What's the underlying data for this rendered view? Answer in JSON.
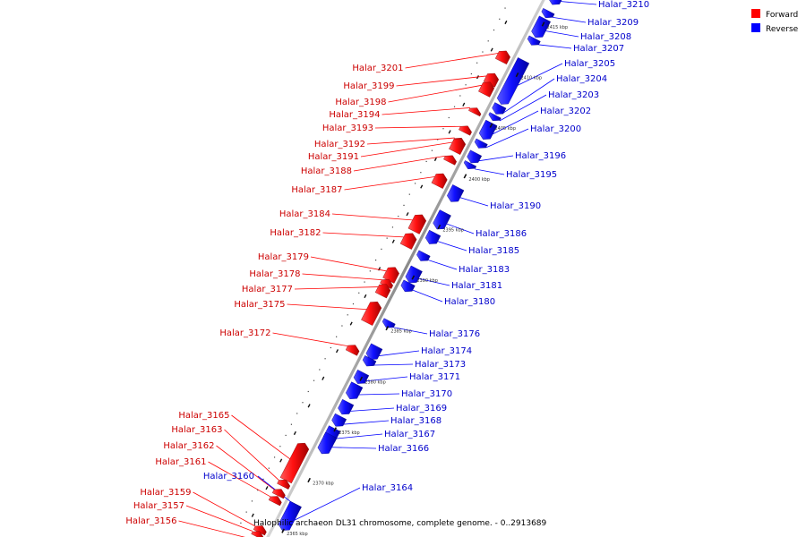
{
  "legend": {
    "items": [
      {
        "label": "Forward",
        "color": "#ff0000"
      },
      {
        "label": "Reverse",
        "color": "#0000ff"
      }
    ]
  },
  "caption": "Halophilic archaeon DL31 chromosome, complete genome. - 0..2913689",
  "kbp_ticks": [
    "2415 kbp",
    "2410 kbp",
    "2405 kbp",
    "2400 kbp",
    "2395 kbp",
    "2390 kbp",
    "2385 kbp",
    "2380 kbp",
    "2375 kbp",
    "2370 kbp",
    "2365 kbp"
  ],
  "genes": {
    "forward": [
      {
        "label": "Halar_3201",
        "s": 0.87,
        "len": 0.019
      },
      {
        "label": "Halar_3199",
        "s": 0.828,
        "len": 0.02
      },
      {
        "label": "Halar_3198",
        "s": 0.81,
        "len": 0.022
      },
      {
        "label": "Halar_3194",
        "s": 0.775,
        "len": 0.01
      },
      {
        "label": "Halar_3193",
        "s": 0.74,
        "len": 0.012
      },
      {
        "label": "Halar_3192",
        "s": 0.72,
        "len": 0.01
      },
      {
        "label": "Halar_3191",
        "s": 0.705,
        "len": 0.024
      },
      {
        "label": "Halar_3188",
        "s": 0.686,
        "len": 0.012
      },
      {
        "label": "Halar_3187",
        "s": 0.643,
        "len": 0.022
      },
      {
        "label": "Halar_3184",
        "s": 0.56,
        "len": 0.03
      },
      {
        "label": "Halar_3182",
        "s": 0.532,
        "len": 0.024
      },
      {
        "label": "Halar_3179",
        "s": 0.47,
        "len": 0.024
      },
      {
        "label": "Halar_3178",
        "s": 0.46,
        "len": 0.012
      },
      {
        "label": "Halar_3177",
        "s": 0.443,
        "len": 0.02
      },
      {
        "label": "Halar_3175",
        "s": 0.393,
        "len": 0.038
      },
      {
        "label": "Halar_3172",
        "s": 0.338,
        "len": 0.014
      },
      {
        "label": "Halar_3165",
        "s": 0.105,
        "len": 0.068
      },
      {
        "label": "Halar_3163",
        "s": 0.094,
        "len": 0.012
      },
      {
        "label": "Halar_3162",
        "s": 0.077,
        "len": 0.012
      },
      {
        "label": "Halar_3161",
        "s": 0.064,
        "len": 0.012
      },
      {
        "label": "Halar_3159",
        "s": 0.01,
        "len": 0.012
      },
      {
        "label": "Halar_3157",
        "s": 0.002,
        "len": 0.01
      },
      {
        "label": "Halar_3156",
        "s": -0.012,
        "len": 0.012
      }
    ],
    "reverse": [
      {
        "label": "Halar_3210",
        "s": 0.99,
        "len": 0.022
      },
      {
        "label": "Halar_3209",
        "s": 0.966,
        "len": 0.012
      },
      {
        "label": "Halar_3208",
        "s": 0.93,
        "len": 0.034
      },
      {
        "label": "Halar_3207",
        "s": 0.916,
        "len": 0.012
      },
      {
        "label": "Halar_3205",
        "s": 0.808,
        "len": 0.08
      },
      {
        "label": "Halar_3204",
        "s": 0.79,
        "len": 0.016
      },
      {
        "label": "Halar_3203",
        "s": 0.778,
        "len": 0.01
      },
      {
        "label": "Halar_3202",
        "s": 0.744,
        "len": 0.03
      },
      {
        "label": "Halar_3200",
        "s": 0.728,
        "len": 0.012
      },
      {
        "label": "Halar_3196",
        "s": 0.701,
        "len": 0.018
      },
      {
        "label": "Halar_3195",
        "s": 0.69,
        "len": 0.01
      },
      {
        "label": "Halar_3190",
        "s": 0.63,
        "len": 0.026
      },
      {
        "label": "Halar_3186",
        "s": 0.58,
        "len": 0.03
      },
      {
        "label": "Halar_3185",
        "s": 0.553,
        "len": 0.02
      },
      {
        "label": "Halar_3183",
        "s": 0.522,
        "len": 0.014
      },
      {
        "label": "Halar_3181",
        "s": 0.482,
        "len": 0.026
      },
      {
        "label": "Halar_3180",
        "s": 0.466,
        "len": 0.016
      },
      {
        "label": "Halar_3176",
        "s": 0.4,
        "len": 0.012
      },
      {
        "label": "Halar_3174",
        "s": 0.342,
        "len": 0.024
      },
      {
        "label": "Halar_3173",
        "s": 0.33,
        "len": 0.014
      },
      {
        "label": "Halar_3171",
        "s": 0.298,
        "len": 0.02
      },
      {
        "label": "Halar_3170",
        "s": 0.27,
        "len": 0.026
      },
      {
        "label": "Halar_3169",
        "s": 0.242,
        "len": 0.022
      },
      {
        "label": "Halar_3168",
        "s": 0.22,
        "len": 0.018
      },
      {
        "label": "Halar_3167",
        "s": 0.19,
        "len": 0.026
      },
      {
        "label": "Halar_3166",
        "s": 0.17,
        "len": 0.034
      },
      {
        "label": "Halar_3160",
        "s": 0.07,
        "len": 0.008
      },
      {
        "label": "Halar_3164",
        "s": 0.03,
        "len": 0.048
      }
    ]
  }
}
